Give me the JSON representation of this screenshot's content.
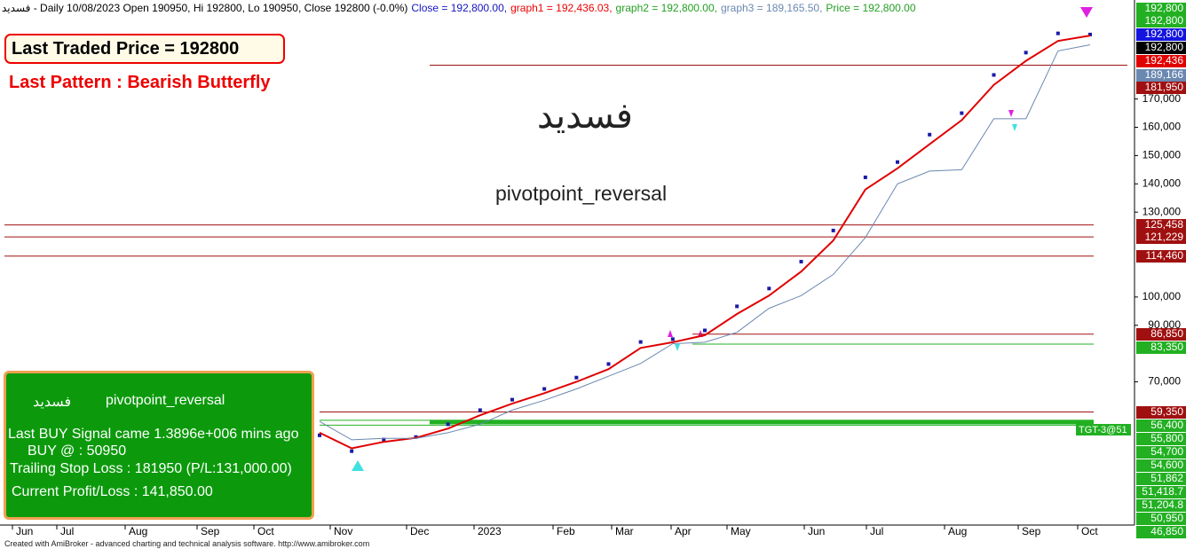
{
  "header": {
    "symbol_line": "فسديد - Daily 10/08/2023 Open 190950, Hi 192800, Lo 190950, Close 192800 (-0.0%)",
    "close": "Close = 192,800.00,",
    "graph1": "graph1 = 192,436.03,",
    "graph2": "graph2 = 192,800.00,",
    "graph3": "graph3 = 189,165.50,",
    "price": "Price = 192,800.00"
  },
  "overlay": {
    "last_traded": "Last Traded Price = 192800",
    "last_pattern": "Last Pattern : Bearish Butterfly",
    "symbol": "فسديد",
    "system": "pivotpoint_reversal",
    "target": "TGT-3@51"
  },
  "signal_box": {
    "symbol": "فسديد",
    "system": "pivotpoint_reversal",
    "signal": "Last BUY Signal came 1.3896e+006 mins ago",
    "buy": "BUY @  : 50950",
    "stop": "Trailing Stop Loss : 181950 (P/L:131,000.00)",
    "profit": "Current Profit/Loss : 141,850.00"
  },
  "footer": "Created with AmiBroker - advanced charting and technical analysis software. http://www.amibroker.com",
  "chart_data": {
    "type": "line",
    "x_labels": [
      "Jun",
      "Jul",
      "Aug",
      "Sep",
      "Oct",
      "Nov",
      "Dec",
      "2023",
      "Feb",
      "Mar",
      "Apr",
      "May",
      "Jun",
      "Jul",
      "Aug",
      "Sep",
      "Oct"
    ],
    "ylim": [
      20000,
      205000
    ],
    "yticks": [
      {
        "value": 70000,
        "label": "70,000"
      },
      {
        "value": 90000,
        "label": "90,000"
      },
      {
        "value": 100000,
        "label": "100,000"
      },
      {
        "value": 130000,
        "label": "130,000"
      },
      {
        "value": 140000,
        "label": "140,000"
      },
      {
        "value": 150000,
        "label": "150,000"
      },
      {
        "value": 160000,
        "label": "160,000"
      },
      {
        "value": 170000,
        "label": "170,000"
      }
    ],
    "series": [
      {
        "name": "Price",
        "color": "#1a1aa8",
        "values": [
          51100,
          45500,
          49600,
          50500,
          55000,
          60000,
          63700,
          67500,
          71500,
          76300,
          84100,
          85100,
          88200,
          96700,
          103000,
          112500,
          123500,
          142300,
          147700,
          157400,
          165000,
          178500,
          186400,
          193200,
          192800
        ]
      },
      {
        "name": "graph1",
        "color": "#e00000",
        "values": [
          52000,
          46500,
          48800,
          50200,
          53500,
          58200,
          62300,
          66000,
          70000,
          74500,
          82000,
          84000,
          86500,
          94000,
          100500,
          109000,
          120000,
          138000,
          145500,
          154000,
          162500,
          175000,
          183500,
          190500,
          192436
        ]
      },
      {
        "name": "graph3",
        "color": "#6a88b0",
        "values": [
          56000,
          49500,
          50000,
          50000,
          52000,
          55000,
          60000,
          63500,
          67500,
          72000,
          76500,
          83500,
          84000,
          87500,
          96000,
          100500,
          108000,
          121000,
          140000,
          144500,
          145000,
          163000,
          163000,
          187000,
          189166
        ]
      }
    ],
    "levels": [
      {
        "value": 192800,
        "label": "192,800",
        "color": "#22b022",
        "line": false
      },
      {
        "value": 192800,
        "label": "192,800",
        "color": "#22b022",
        "line": false
      },
      {
        "value": 192800,
        "label": "192,800",
        "color": "#1414e0",
        "line": false
      },
      {
        "value": 192800,
        "label": "192,800",
        "color": "#000000",
        "line": false
      },
      {
        "value": 192436,
        "label": "192,436",
        "color": "#e00000",
        "line": false
      },
      {
        "value": 189166,
        "label": "189,166",
        "color": "#6a88b0",
        "line": false
      },
      {
        "value": 181950,
        "label": "181,950",
        "color": "#a01010",
        "line": true
      },
      {
        "value": 125458,
        "label": "125,458",
        "color": "#a01010",
        "line": true
      },
      {
        "value": 121229,
        "label": "121,229",
        "color": "#a01010",
        "line": true
      },
      {
        "value": 114460,
        "label": "114,460",
        "color": "#a01010",
        "line": true
      },
      {
        "value": 86850,
        "label": "86,850",
        "color": "#a01010",
        "line": true
      },
      {
        "value": 83350,
        "label": "83,350",
        "color": "#22b022",
        "line": true
      },
      {
        "value": 59350,
        "label": "59,350",
        "color": "#a01010",
        "line": true
      },
      {
        "value": 56400,
        "label": "56,400",
        "color": "#22b022",
        "line": true
      },
      {
        "value": 55800,
        "label": "55,800",
        "color": "#22b022",
        "line": true
      },
      {
        "value": 54700,
        "label": "54,700",
        "color": "#22b022",
        "line": true
      },
      {
        "value": 54600,
        "label": "54,600",
        "color": "#22b022",
        "line": false
      },
      {
        "value": 51862,
        "label": "51,862",
        "color": "#22b022",
        "line": false
      },
      {
        "value": 51418.7,
        "label": "51,418.7",
        "color": "#22b022",
        "line": false
      },
      {
        "value": 51204.8,
        "label": "51,204.8",
        "color": "#22b022",
        "line": false
      },
      {
        "value": 50950,
        "label": "50,950",
        "color": "#22b022",
        "line": false
      },
      {
        "value": 46850,
        "label": "46,850",
        "color": "#22b022",
        "line": false
      }
    ]
  }
}
